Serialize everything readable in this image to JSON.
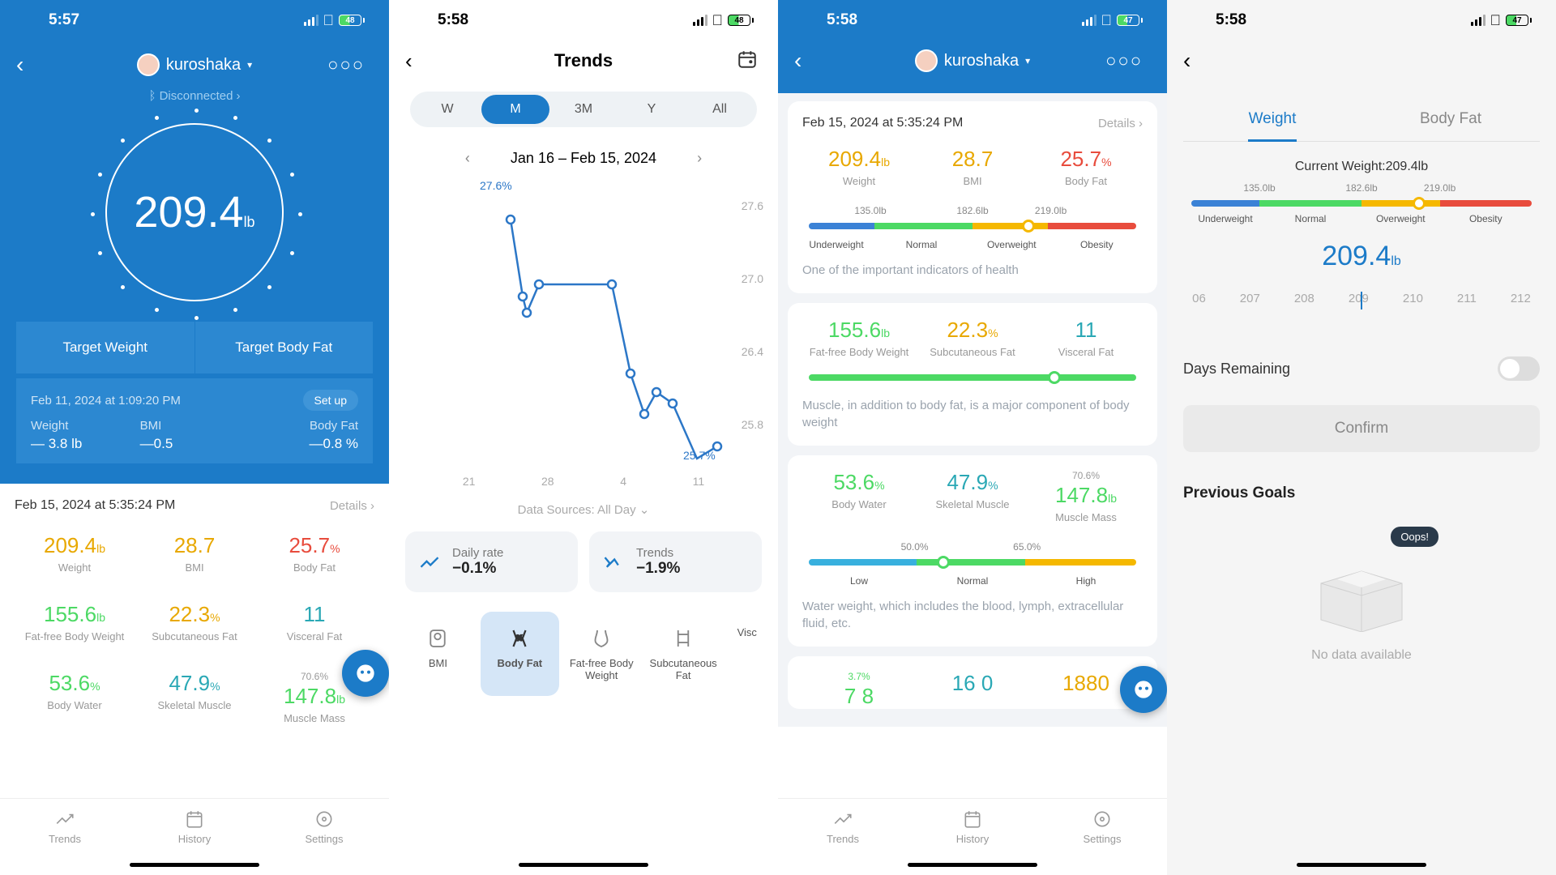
{
  "colors": {
    "primary": "#1c7bc8",
    "yellow": "#e8a800",
    "red": "#e84c3d",
    "green": "#4cd964",
    "teal": "#2aa8b5",
    "gray": "#999"
  },
  "s1": {
    "time": "5:57",
    "battery": "48",
    "user": "kuroshaka",
    "disconnected": "Disconnected",
    "weight_val": "209.4",
    "weight_unit": "lb",
    "target_weight": "Target Weight",
    "target_bodyfat": "Target Body Fat",
    "change_date": "Feb 11, 2024 at 1:09:20 PM",
    "setup": "Set up",
    "ch_weight_l": "Weight",
    "ch_weight_v": "— 3.8 lb",
    "ch_bmi_l": "BMI",
    "ch_bmi_v": "—0.5",
    "ch_bf_l": "Body Fat",
    "ch_bf_v": "—0.8 %",
    "sum_date": "Feb 15, 2024 at 5:35:24 PM",
    "details": "Details",
    "m": {
      "weight_v": "209.4",
      "weight_u": "lb",
      "weight_l": "Weight",
      "bmi_v": "28.7",
      "bmi_l": "BMI",
      "bf_v": "25.7",
      "bf_u": "%",
      "bf_l": "Body Fat",
      "ffbw_v": "155.6",
      "ffbw_u": "lb",
      "ffbw_l": "Fat-free Body Weight",
      "sf_v": "22.3",
      "sf_u": "%",
      "sf_l": "Subcutaneous Fat",
      "vf_v": "11",
      "vf_l": "Visceral Fat",
      "bw_v": "53.6",
      "bw_u": "%",
      "bw_l": "Body Water",
      "sm_v": "47.9",
      "sm_u": "%",
      "sm_l": "Skeletal Muscle",
      "mm_top": "70.6%",
      "mm_v": "147.8",
      "mm_u": "lb",
      "mm_l": "Muscle Mass"
    },
    "tabs": {
      "trends": "Trends",
      "history": "History",
      "settings": "Settings"
    }
  },
  "s2": {
    "time": "5:58",
    "battery": "48",
    "title": "Trends",
    "ranges": [
      "W",
      "M",
      "3M",
      "Y",
      "All"
    ],
    "range_active": 1,
    "date_range": "Jan 16 – Feb 15, 2024",
    "start_label": "27.6%",
    "end_label": "25.7%",
    "y_ticks": [
      "27.6",
      "27.0",
      "26.4",
      "25.8"
    ],
    "x_ticks": [
      "21",
      "28",
      "4",
      "11"
    ],
    "data_source": "Data Sources: All Day",
    "daily_rate_l": "Daily rate",
    "daily_rate_v": "−0.1%",
    "trends_l": "Trends",
    "trends_v": "−1.9%",
    "chart_points": [
      [
        80,
        35
      ],
      [
        95,
        130
      ],
      [
        100,
        150
      ],
      [
        115,
        115
      ],
      [
        160,
        115
      ],
      [
        205,
        115
      ],
      [
        228,
        225
      ],
      [
        245,
        275
      ],
      [
        260,
        248
      ],
      [
        280,
        262
      ],
      [
        310,
        330
      ],
      [
        335,
        315
      ]
    ],
    "mtabs": [
      "BMI",
      "Body Fat",
      "Fat-free Body Weight",
      "Subcutaneous Fat",
      "Visc"
    ],
    "mtab_active": 1
  },
  "s3": {
    "time": "5:58",
    "battery": "47",
    "user": "kuroshaka",
    "sum_date": "Feb 15, 2024 at 5:35:24 PM",
    "details": "Details",
    "m": {
      "weight_v": "209.4",
      "weight_u": "lb",
      "weight_l": "Weight",
      "bmi_v": "28.7",
      "bmi_l": "BMI",
      "bf_v": "25.7",
      "bf_u": "%",
      "bf_l": "Body Fat",
      "ffbw_v": "155.6",
      "ffbw_u": "lb",
      "ffbw_l": "Fat-free Body Weight",
      "sf_v": "22.3",
      "sf_u": "%",
      "sf_l": "Subcutaneous Fat",
      "vf_v": "11",
      "vf_l": "Visceral Fat",
      "bw_v": "53.6",
      "bw_u": "%",
      "bw_l": "Body Water",
      "sm_v": "47.9",
      "sm_u": "%",
      "sm_l": "Skeletal Muscle",
      "mm_top": "70.6%",
      "mm_v": "147.8",
      "mm_u": "lb",
      "mm_l": "Muscle Mass"
    },
    "weight_ticks": [
      "135.0lb",
      "182.6lb",
      "219.0lb"
    ],
    "weight_labs": [
      "Underweight",
      "Normal",
      "Overweight",
      "Obesity"
    ],
    "weight_desc": "One of the important indicators of health",
    "muscle_desc": "Muscle, in addition to body fat, is a major component of body weight",
    "water_ticks": [
      "50.0%",
      "65.0%"
    ],
    "water_labs": [
      "Low",
      "Normal",
      "High"
    ],
    "water_desc": "Water weight, which includes the blood, lymph, extracellular fluid, etc.",
    "bottom_partial": {
      "a_top": "3.7%",
      "a_v": "7 8",
      "b_v": "16 0",
      "c_v": "1880"
    },
    "tabs": {
      "trends": "Trends",
      "history": "History",
      "settings": "Settings"
    }
  },
  "s4": {
    "time": "5:58",
    "battery": "47",
    "tab_weight": "Weight",
    "tab_bf": "Body Fat",
    "cur_label": "Current Weight:209.4lb",
    "ticks": [
      "135.0lb",
      "182.6lb",
      "219.0lb"
    ],
    "labs": [
      "Underweight",
      "Normal",
      "Overweight",
      "Obesity"
    ],
    "slider_val": "209.4",
    "slider_unit": "lb",
    "ruler": [
      "06",
      "207",
      "208",
      "209",
      "210",
      "211",
      "212"
    ],
    "days_remaining": "Days Remaining",
    "confirm": "Confirm",
    "prev_goals": "Previous Goals",
    "oops": "Oops!",
    "nodata": "No data available"
  }
}
